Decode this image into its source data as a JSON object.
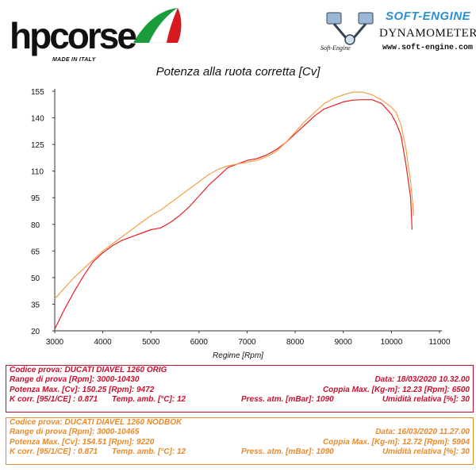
{
  "header": {
    "brand": "hpcorse",
    "brand_tagline": "MADE IN ITALY",
    "flag_colors": [
      "#1a9b3c",
      "#ffffff",
      "#d71920"
    ],
    "dyno_name": "SOFT-ENGINE",
    "dyno_sub": "DYNAMOMETERS",
    "dyno_url": "www.soft-engine.com",
    "dyno_small": "Soft-Engine",
    "dyno_color": "#2a8fd6",
    "dyno_icon": "piston-icon"
  },
  "chart_data": {
    "type": "line",
    "title": "Potenza alla ruota corretta [Cv]",
    "xlabel": "Regime [Rpm]",
    "ylabel": "",
    "xlim": [
      3000,
      11000
    ],
    "ylim": [
      20,
      155
    ],
    "xticks": [
      "3000",
      "4000",
      "5000",
      "6000",
      "7000",
      "8000",
      "9000",
      "10000",
      "11000"
    ],
    "yticks": [
      "155",
      "140",
      "125",
      "110",
      "95",
      "80",
      "65",
      "50",
      "35",
      "20"
    ],
    "grid": false,
    "series": [
      {
        "color": "#e82025",
        "x": [
          3000,
          3200,
          3400,
          3600,
          3800,
          4000,
          4200,
          4400,
          4600,
          4800,
          5000,
          5200,
          5400,
          5600,
          5800,
          6000,
          6200,
          6400,
          6600,
          6800,
          7000,
          7200,
          7400,
          7600,
          7800,
          8000,
          8200,
          8400,
          8600,
          8800,
          9000,
          9200,
          9400,
          9600,
          9800,
          10000,
          10100,
          10200,
          10300,
          10400,
          10430
        ],
        "y": [
          21,
          32,
          42,
          51,
          59,
          64,
          68,
          71,
          73,
          75,
          77,
          78,
          81,
          85,
          90,
          96,
          102,
          107,
          112,
          114,
          116,
          117,
          119,
          122,
          126,
          131,
          136,
          141,
          145,
          147,
          149,
          150,
          150.2,
          150.2,
          148,
          142,
          137,
          130,
          114,
          95,
          77
        ]
      },
      {
        "color": "#f5a04a",
        "x": [
          3000,
          3200,
          3400,
          3600,
          3800,
          4000,
          4200,
          4400,
          4600,
          4800,
          5000,
          5200,
          5400,
          5600,
          5800,
          6000,
          6200,
          6400,
          6600,
          6800,
          7000,
          7200,
          7400,
          7600,
          7800,
          8000,
          8200,
          8400,
          8600,
          8800,
          9000,
          9200,
          9400,
          9600,
          9800,
          10000,
          10100,
          10200,
          10300,
          10400,
          10465
        ],
        "y": [
          38,
          44,
          50,
          55,
          60,
          65,
          69,
          73,
          77,
          81,
          85,
          88,
          92,
          96,
          100,
          104,
          108,
          111,
          113,
          114,
          115,
          116,
          118,
          121,
          126,
          132,
          138,
          143,
          148,
          151,
          153,
          154.5,
          154.5,
          153,
          150,
          146,
          143,
          136,
          123,
          104,
          85
        ]
      }
    ]
  },
  "info": {
    "run1": {
      "color": "#c8102e",
      "codice": "Codice prova: DUCATI DIAVEL 1260 ORIG",
      "range": "Range di prova [Rpm]: 3000-10430",
      "data": "Data: 18/03/2020   10.32.00",
      "potenza": "Potenza Max. [Cv]: 150.25   [Rpm]: 9472",
      "coppia": "Coppia Max. [Kg-m]: 12.23   [Rpm]: 6500",
      "kcorr": "K corr. [95/1/CE] : 0.871",
      "temp": "Temp. amb. [°C]: 12",
      "press": "Press. atm. [mBar]: 1090",
      "umid": "Umidità relativa [%]: 30"
    },
    "run2": {
      "color": "#e8892a",
      "codice": "Codice prova: DUCATI DIAVEL 1260 NODBOK",
      "range": "Range di prova [Rpm]: 3000-10465",
      "data": "Data: 16/03/2020   11.27.00",
      "potenza": "Potenza Max. [Cv]: 154.51   [Rpm]: 9220",
      "coppia": "Coppia Max. [Kg-m]: 12.72   [Rpm]: 5904",
      "kcorr": "K corr. [95/1/CE] : 0.871",
      "temp": "Temp. amb. [°C]: 12",
      "press": "Press. atm. [mBar]: 1090",
      "umid": "Umidità relativa [%]: 30"
    }
  }
}
